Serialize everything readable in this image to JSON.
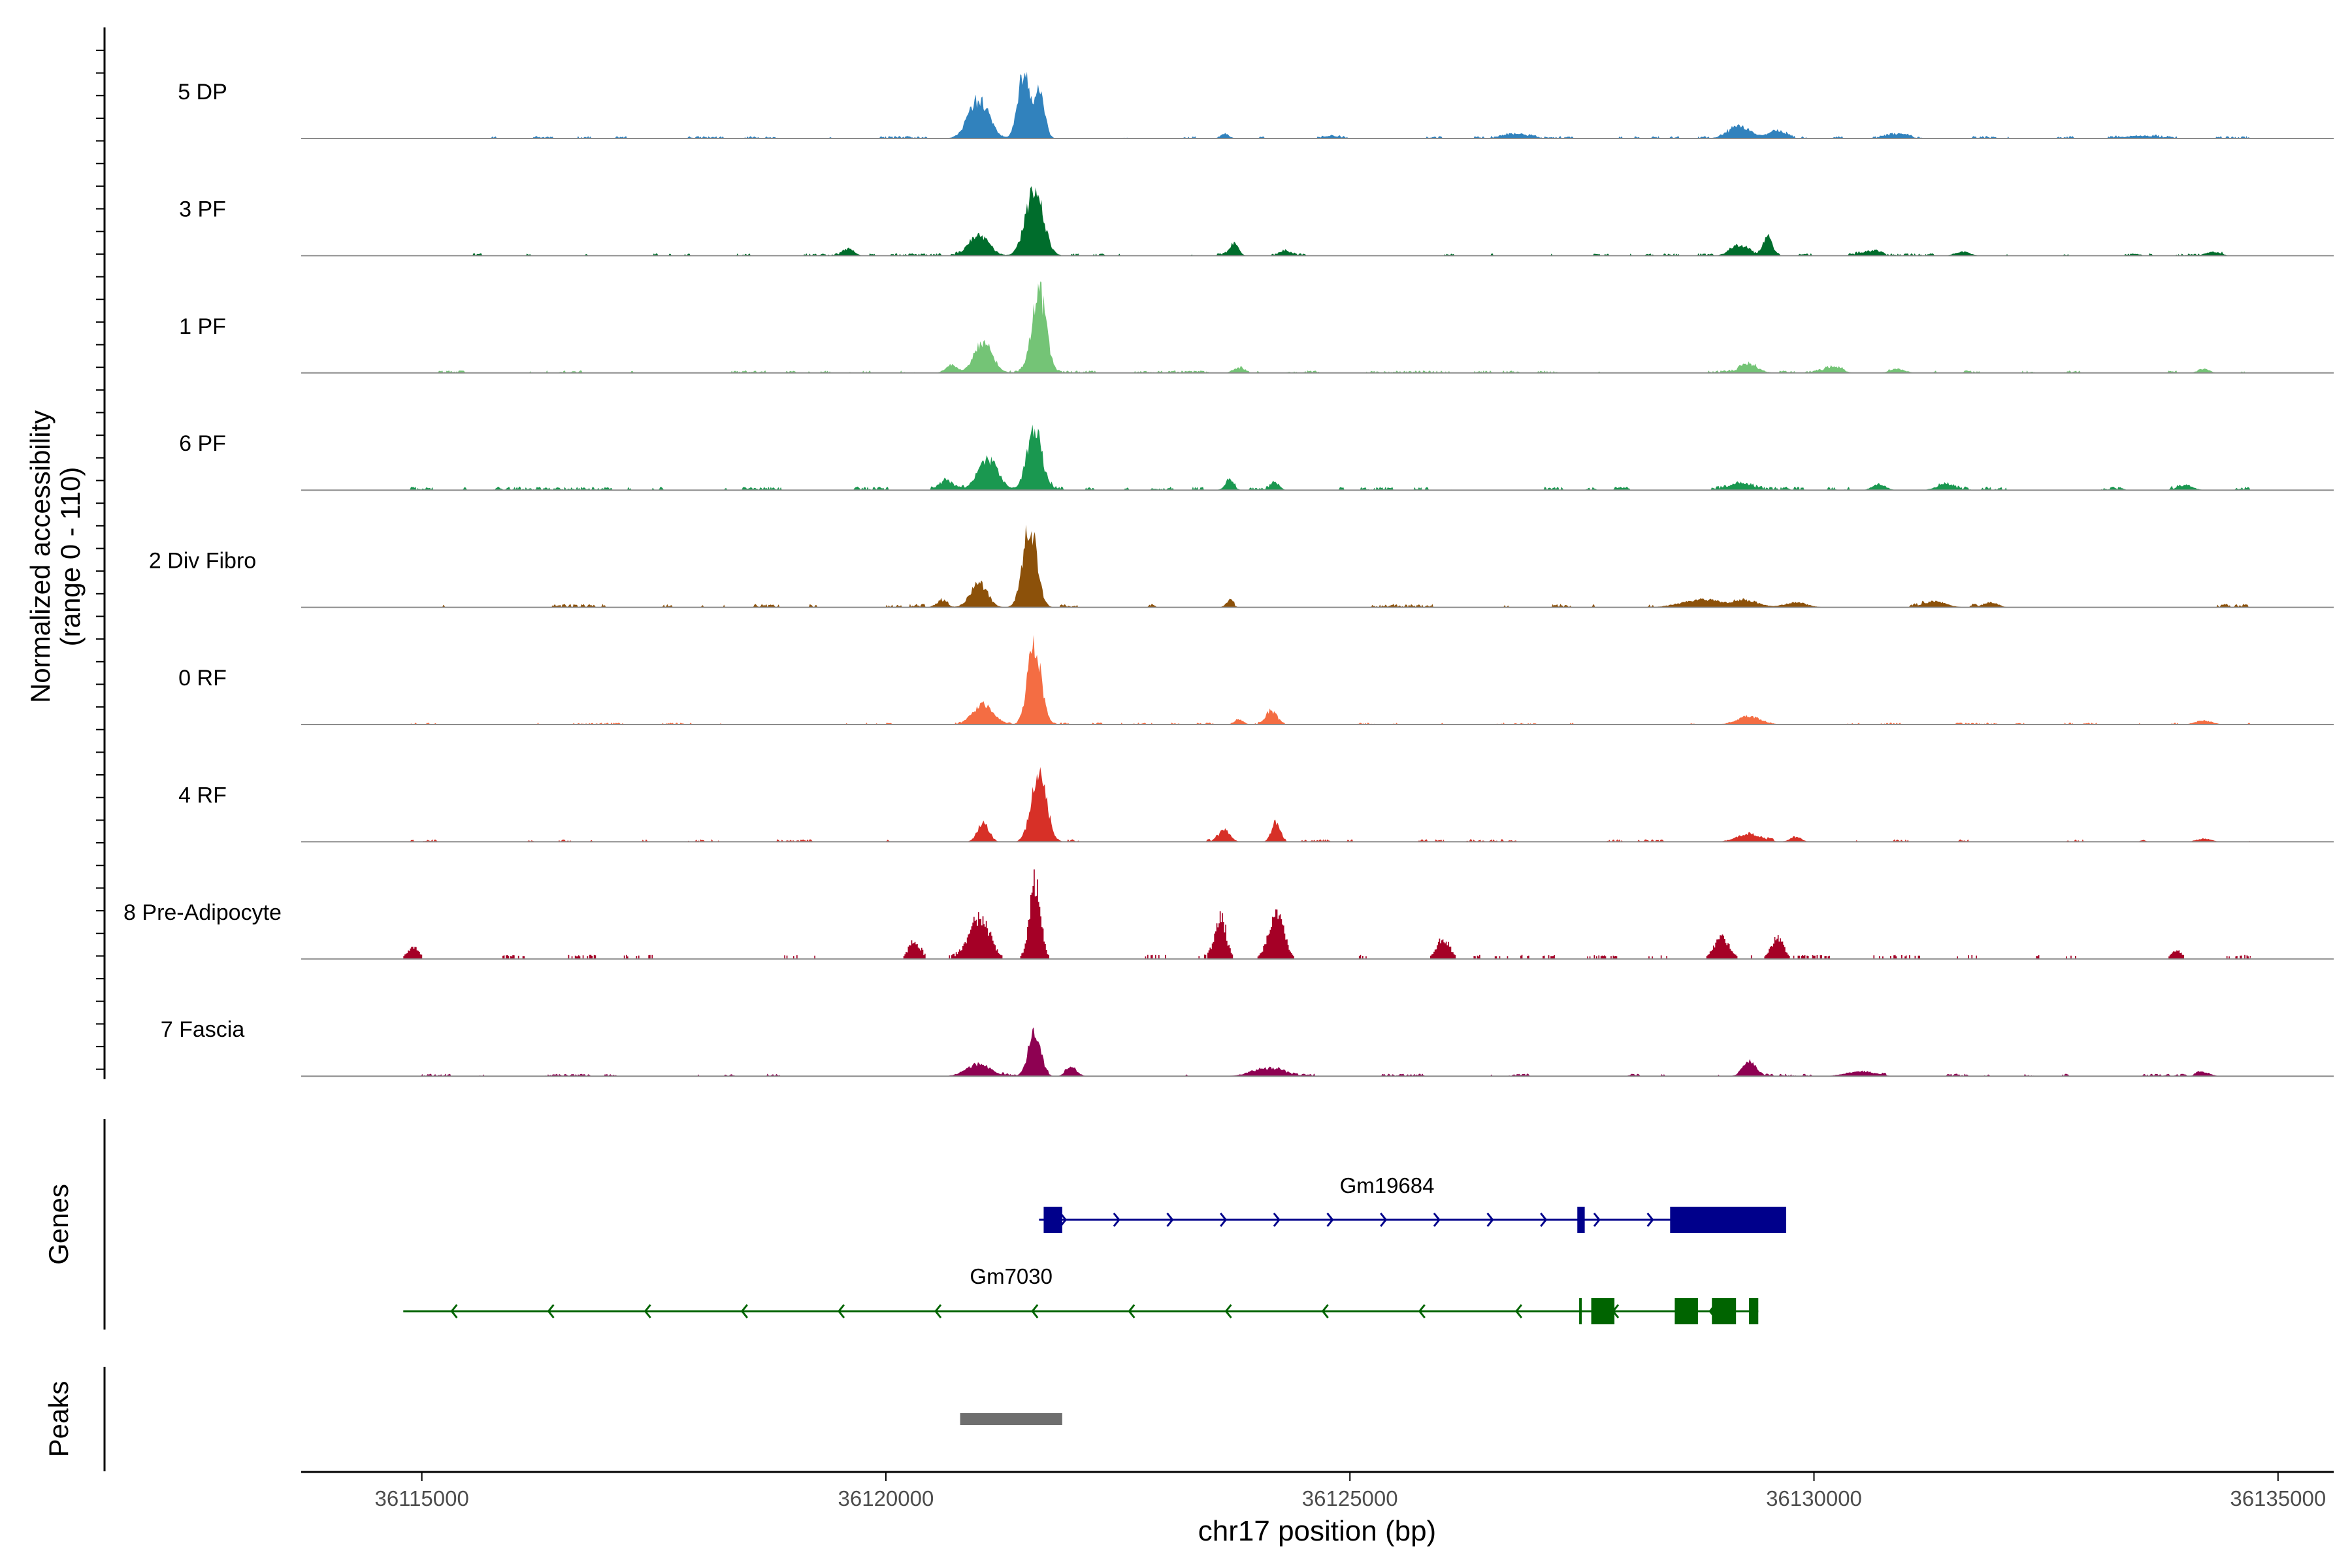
{
  "chart_data": {
    "type": "area",
    "title": "",
    "ylabel_line1": "Normalized accessibility",
    "ylabel_line2": "(range 0 - 110)",
    "xlabel": "chr17 position (bp)",
    "xlim": [
      36113700,
      36135600
    ],
    "x_ticks": [
      36115000,
      36120000,
      36125000,
      36130000,
      36135000
    ],
    "x_tick_labels": [
      "36115000",
      "36120000",
      "36125000",
      "36130000",
      "36135000"
    ],
    "ylim": [
      0,
      110
    ],
    "data_range_x": [
      36114800,
      36134700
    ],
    "series": [
      {
        "name": "5 DP",
        "color": "#3182bd",
        "peaks": [
          [
            36121000,
            38,
            110
          ],
          [
            36121480,
            65,
            60
          ],
          [
            36121650,
            52,
            55
          ],
          [
            36123650,
            5,
            45
          ],
          [
            36124800,
            3,
            60
          ],
          [
            36126800,
            5,
            120
          ],
          [
            36129200,
            12,
            120
          ],
          [
            36129600,
            8,
            90
          ],
          [
            36130900,
            4,
            100
          ],
          [
            36133500,
            3,
            150
          ]
        ],
        "base_seed": 11,
        "base_level": 2.5
      },
      {
        "name": "3 PF",
        "color": "#006d2c",
        "peaks": [
          [
            36121000,
            20,
            110
          ],
          [
            36121600,
            62,
            95
          ],
          [
            36119600,
            7,
            60
          ],
          [
            36123750,
            12,
            50
          ],
          [
            36124300,
            4,
            60
          ],
          [
            36129200,
            10,
            100
          ],
          [
            36129500,
            18,
            45
          ],
          [
            36130600,
            5,
            90
          ],
          [
            36131600,
            4,
            80
          ],
          [
            36134300,
            4,
            80
          ]
        ],
        "base_seed": 23,
        "base_level": 2.5
      },
      {
        "name": "1 PF",
        "color": "#74c476",
        "peaks": [
          [
            36121050,
            30,
            100
          ],
          [
            36121650,
            80,
            75
          ],
          [
            36120700,
            8,
            60
          ],
          [
            36123800,
            5,
            60
          ],
          [
            36129300,
            8,
            100
          ],
          [
            36130200,
            5,
            100
          ],
          [
            36130900,
            4,
            80
          ],
          [
            36134200,
            4,
            60
          ]
        ],
        "base_seed": 37,
        "base_level": 2.5
      },
      {
        "name": "6 PF",
        "color": "#1a9850",
        "peaks": [
          [
            36121100,
            30,
            110
          ],
          [
            36121600,
            60,
            80
          ],
          [
            36120650,
            8,
            70
          ],
          [
            36123700,
            8,
            50
          ],
          [
            36124200,
            7,
            45
          ],
          [
            36129200,
            8,
            110
          ],
          [
            36130700,
            6,
            70
          ],
          [
            36131400,
            5,
            90
          ],
          [
            36134000,
            5,
            80
          ]
        ],
        "base_seed": 41,
        "base_level": 3.5
      },
      {
        "name": "2 Div Fibro",
        "color": "#8c510a",
        "peaks": [
          [
            36121000,
            25,
            90
          ],
          [
            36121550,
            82,
            75
          ],
          [
            36120600,
            6,
            60
          ],
          [
            36123700,
            6,
            40
          ],
          [
            36128800,
            8,
            220
          ],
          [
            36129300,
            6,
            120
          ],
          [
            36129800,
            5,
            120
          ],
          [
            36131300,
            6,
            120
          ],
          [
            36131900,
            5,
            80
          ]
        ],
        "base_seed": 53,
        "base_level": 3.5
      },
      {
        "name": "0 RF",
        "color": "#f46d43",
        "peaks": [
          [
            36121050,
            20,
            110
          ],
          [
            36121600,
            80,
            70
          ],
          [
            36124150,
            13,
            60
          ],
          [
            36123800,
            5,
            50
          ],
          [
            36129300,
            8,
            130
          ],
          [
            36134200,
            4,
            90
          ]
        ],
        "base_seed": 67,
        "base_level": 2.0
      },
      {
        "name": "4 RF",
        "color": "#d73027",
        "peaks": [
          [
            36121050,
            20,
            60
          ],
          [
            36121650,
            72,
            80
          ],
          [
            36123650,
            12,
            60
          ],
          [
            36124200,
            20,
            45
          ],
          [
            36129300,
            8,
            130
          ],
          [
            36129800,
            5,
            60
          ],
          [
            36134200,
            3,
            80
          ]
        ],
        "base_seed": 79,
        "base_level": 2.5
      },
      {
        "name": "8 Pre-Adipocyte",
        "color": "#a50026",
        "peaks": [
          [
            36121000,
            40,
            110
          ],
          [
            36121600,
            75,
            60
          ],
          [
            36120300,
            18,
            60
          ],
          [
            36123600,
            40,
            60
          ],
          [
            36124200,
            48,
            80
          ],
          [
            36126000,
            20,
            70
          ],
          [
            36129000,
            22,
            80
          ],
          [
            36129600,
            20,
            70
          ],
          [
            36114900,
            12,
            60
          ],
          [
            36133900,
            8,
            60
          ]
        ],
        "base_seed": 97,
        "base_level": 4.0,
        "blocky": true
      },
      {
        "name": "7 Fascia",
        "color": "#8e0152",
        "peaks": [
          [
            36121000,
            12,
            130
          ],
          [
            36121600,
            45,
            65
          ],
          [
            36122000,
            8,
            60
          ],
          [
            36124100,
            8,
            160
          ],
          [
            36129300,
            14,
            70
          ],
          [
            36130500,
            5,
            150
          ],
          [
            36134200,
            4,
            70
          ]
        ],
        "base_seed": 113,
        "base_level": 2.5
      }
    ]
  },
  "genes_panel": {
    "label": "Genes",
    "genes": [
      {
        "name": "Gm19684",
        "strand": "+",
        "color": "#00008b",
        "start": 36121650,
        "end": 36129700,
        "exons": [
          [
            36121700,
            36121900
          ],
          [
            36127450,
            36127530
          ],
          [
            36128450,
            36129700
          ]
        ]
      },
      {
        "name": "Gm7030",
        "strand": "-",
        "color": "#006400",
        "start": 36114800,
        "end": 36129400,
        "exons": [
          [
            36127470,
            36127490
          ],
          [
            36127600,
            36127850
          ],
          [
            36128500,
            36128750
          ],
          [
            36128900,
            36129160
          ],
          [
            36129300,
            36129400
          ]
        ]
      }
    ]
  },
  "peaks_panel": {
    "label": "Peaks",
    "peaks": [
      [
        36120800,
        36121900
      ]
    ],
    "color": "#6e6e6e"
  }
}
